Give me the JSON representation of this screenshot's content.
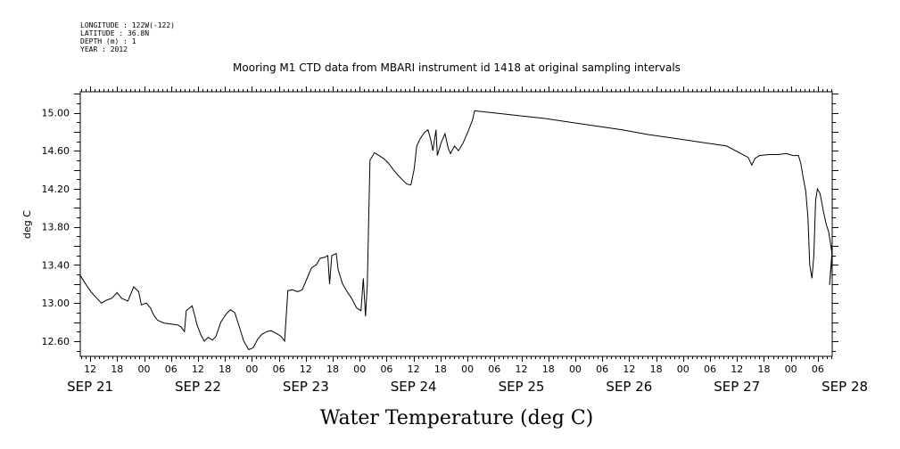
{
  "header": {
    "meta_lines": [
      "LONGITUDE : 122W(-122)",
      "LATITUDE : 36.8N",
      "DEPTH (m) : 1",
      "YEAR : 2012"
    ]
  },
  "chart_data": {
    "type": "line",
    "title": "Mooring M1 CTD data from MBARI instrument id 1418 at original sampling intervals",
    "xlabel": "Water Temperature (deg C)",
    "ylabel": "deg C",
    "x_units": "hours since SEP 21 00:00 (2012)",
    "xlim": [
      9.8,
      177.2
    ],
    "ylim": [
      12.44,
      15.22
    ],
    "yticks": [
      15.0,
      14.6,
      14.2,
      13.8,
      13.4,
      13.0,
      12.6
    ],
    "ytick_labels": [
      "15.00",
      "14.60",
      "14.20",
      "13.80",
      "13.40",
      "13.00",
      "12.60"
    ],
    "hour_labels": [
      "12",
      "18",
      "00",
      "06",
      "12",
      "18",
      "00",
      "06",
      "12",
      "18",
      "00",
      "06",
      "12",
      "18",
      "00",
      "06",
      "12",
      "18",
      "00",
      "06",
      "12",
      "18",
      "00",
      "06",
      "12",
      "18",
      "00",
      "06",
      "12",
      "18",
      "00",
      "06"
    ],
    "day_labels": [
      "SEP 21",
      "SEP 22",
      "SEP 23",
      "SEP 24",
      "SEP 25",
      "SEP 26",
      "SEP 27",
      "SEP 28"
    ],
    "grid": false,
    "legend": "none",
    "series": [
      {
        "color": "#000000",
        "points": [
          [
            9.8,
            13.29
          ],
          [
            11,
            13.2
          ],
          [
            12.3,
            13.11
          ],
          [
            13.5,
            13.05
          ],
          [
            14.5,
            13.0
          ],
          [
            15.6,
            13.03
          ],
          [
            16.8,
            13.05
          ],
          [
            18,
            13.11
          ],
          [
            19,
            13.05
          ],
          [
            20.4,
            13.02
          ],
          [
            21.7,
            13.17
          ],
          [
            22.8,
            13.12
          ],
          [
            23.4,
            12.98
          ],
          [
            24.5,
            13.0
          ],
          [
            25.4,
            12.95
          ],
          [
            26.2,
            12.87
          ],
          [
            27,
            12.82
          ],
          [
            28.4,
            12.79
          ],
          [
            30,
            12.78
          ],
          [
            31.5,
            12.77
          ],
          [
            32.2,
            12.75
          ],
          [
            33,
            12.7
          ],
          [
            33.4,
            12.92
          ],
          [
            34.7,
            12.97
          ],
          [
            35.4,
            12.85
          ],
          [
            35.8,
            12.77
          ],
          [
            36.6,
            12.67
          ],
          [
            37.4,
            12.6
          ],
          [
            38.3,
            12.64
          ],
          [
            39.2,
            12.61
          ],
          [
            40,
            12.65
          ],
          [
            41.1,
            12.8
          ],
          [
            42.2,
            12.88
          ],
          [
            43.2,
            12.93
          ],
          [
            44.2,
            12.9
          ],
          [
            45.2,
            12.75
          ],
          [
            46.2,
            12.6
          ],
          [
            47.3,
            12.51
          ],
          [
            48.3,
            12.53
          ],
          [
            49.3,
            12.62
          ],
          [
            50.2,
            12.67
          ],
          [
            51.3,
            12.7
          ],
          [
            52.3,
            12.71
          ],
          [
            53.5,
            12.68
          ],
          [
            54.5,
            12.65
          ],
          [
            55.3,
            12.6
          ],
          [
            56,
            13.13
          ],
          [
            57,
            13.14
          ],
          [
            58.2,
            13.12
          ],
          [
            59.2,
            13.14
          ],
          [
            60.2,
            13.25
          ],
          [
            61.3,
            13.37
          ],
          [
            62.3,
            13.4
          ],
          [
            63.2,
            13.47
          ],
          [
            64.2,
            13.48
          ],
          [
            64.9,
            13.5
          ],
          [
            65.3,
            13.2
          ],
          [
            65.8,
            13.5
          ],
          [
            66.8,
            13.52
          ],
          [
            67.2,
            13.35
          ],
          [
            68.2,
            13.2
          ],
          [
            69.2,
            13.12
          ],
          [
            70.2,
            13.05
          ],
          [
            71.3,
            12.95
          ],
          [
            72.3,
            12.92
          ],
          [
            72.8,
            13.26
          ],
          [
            73.3,
            12.86
          ],
          [
            73.7,
            13.2
          ],
          [
            74.3,
            14.5
          ],
          [
            75.3,
            14.58
          ],
          [
            76.3,
            14.55
          ],
          [
            77.3,
            14.52
          ],
          [
            78.4,
            14.47
          ],
          [
            79.5,
            14.4
          ],
          [
            80.4,
            14.35
          ],
          [
            81.4,
            14.3
          ],
          [
            82.5,
            14.25
          ],
          [
            83.4,
            14.24
          ],
          [
            84.1,
            14.4
          ],
          [
            84.7,
            14.65
          ],
          [
            85.4,
            14.72
          ],
          [
            86.4,
            14.79
          ],
          [
            87.2,
            14.82
          ],
          [
            87.8,
            14.72
          ],
          [
            88.3,
            14.6
          ],
          [
            89,
            14.82
          ],
          [
            89.3,
            14.55
          ],
          [
            90.1,
            14.68
          ],
          [
            91,
            14.78
          ],
          [
            91.7,
            14.63
          ],
          [
            92.2,
            14.57
          ],
          [
            93.1,
            14.65
          ],
          [
            94,
            14.6
          ],
          [
            95,
            14.68
          ],
          [
            96.1,
            14.8
          ],
          [
            97.1,
            14.92
          ],
          [
            97.6,
            15.02
          ],
          [
            101.5,
            15.0
          ],
          [
            107.3,
            14.97
          ],
          [
            113.1,
            14.94
          ],
          [
            118.9,
            14.9
          ],
          [
            124.7,
            14.86
          ],
          [
            130.5,
            14.82
          ],
          [
            136.3,
            14.77
          ],
          [
            142.1,
            14.73
          ],
          [
            147.9,
            14.69
          ],
          [
            153.7,
            14.65
          ],
          [
            158.5,
            14.53
          ],
          [
            159.3,
            14.45
          ],
          [
            160,
            14.52
          ],
          [
            161,
            14.55
          ],
          [
            163,
            14.56
          ],
          [
            165,
            14.56
          ],
          [
            167,
            14.57
          ],
          [
            168.5,
            14.55
          ],
          [
            169.7,
            14.55
          ],
          [
            170.2,
            14.47
          ],
          [
            170.8,
            14.3
          ],
          [
            171.3,
            14.18
          ],
          [
            171.8,
            13.9
          ],
          [
            172.2,
            13.4
          ],
          [
            172.7,
            13.26
          ],
          [
            173.1,
            13.5
          ],
          [
            173.5,
            14.08
          ],
          [
            173.9,
            14.2
          ],
          [
            174.5,
            14.15
          ],
          [
            175.3,
            13.95
          ],
          [
            175.9,
            13.82
          ],
          [
            176.4,
            13.75
          ],
          [
            176.9,
            13.6
          ],
          [
            177.2,
            13.5
          ],
          [
            176.6,
            13.19
          ],
          [
            177.1,
            13.5
          ],
          [
            177.2,
            13.65
          ]
        ]
      }
    ]
  }
}
